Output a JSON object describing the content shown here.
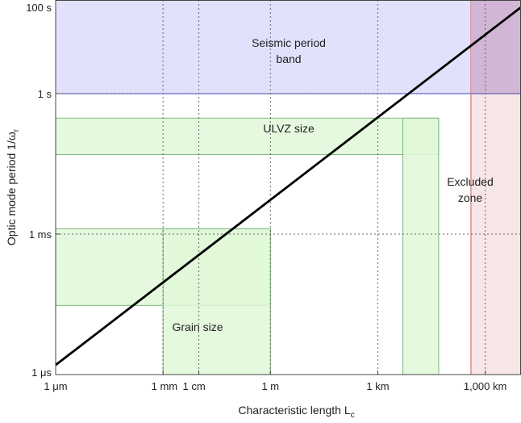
{
  "chart_data": {
    "type": "line",
    "title": "",
    "x_scale": "log",
    "y_scale": "log",
    "xlim": [
      "1e-6 m",
      "1e7 m"
    ],
    "ylim": [
      "1e-6 s",
      "100 s"
    ],
    "xlabel": {
      "main": "Characteristic length L",
      "sub": "c"
    },
    "ylabel": {
      "main": "Optic mode period 1/ω",
      "sub": "r"
    },
    "x_ticks": [
      {
        "value_m": 1e-06,
        "label": "1 μm"
      },
      {
        "value_m": 0.001,
        "label": "1 mm"
      },
      {
        "value_m": 0.01,
        "label": "1 cm"
      },
      {
        "value_m": 1,
        "label": "1 m"
      },
      {
        "value_m": 1000.0,
        "label": "1 km"
      },
      {
        "value_m": 1000000.0,
        "label": "1,000 km"
      }
    ],
    "y_ticks": [
      {
        "value_s": 1e-06,
        "label": "1 μs"
      },
      {
        "value_s": 0.001,
        "label": "1 ms"
      },
      {
        "value_s": 1,
        "label": "1 s"
      },
      {
        "value_s": 100,
        "label": "100 s"
      }
    ],
    "grid": true,
    "series": [
      {
        "x_m": [
          1e-06,
          10000000.0
        ],
        "y_s": [
          1.6e-06,
          70
        ],
        "color": "#000000"
      }
    ],
    "regions": [
      {
        "label_lines": [
          "Seismic period",
          "band"
        ],
        "x_m": [
          1e-06,
          10000000.0
        ],
        "y_s": [
          1,
          100
        ],
        "fill": "#dcdcfb",
        "edge": "#3a3ad6"
      },
      {
        "label_lines": [
          "Excluded",
          "zone"
        ],
        "x_m": [
          400000.0,
          10000000.0
        ],
        "y_s": [
          1e-06,
          100
        ],
        "fill": "#f3dede",
        "edge": "#d65a5a"
      },
      {
        "label_lines": [
          "ULVZ size"
        ],
        "x_m": [
          1e-06,
          50000.0
        ],
        "y_s": [
          0.05,
          0.3
        ],
        "fill": "#e0f8d8",
        "edge": "#7cb87c"
      },
      {
        "label_lines": [],
        "x_m": [
          5000.0,
          50000.0
        ],
        "y_s": [
          1e-06,
          0.3
        ],
        "fill": "#e0f8d8",
        "edge": "#7cb87c"
      },
      {
        "label_lines": [],
        "x_m": [
          1e-06,
          1
        ],
        "y_s": [
          3e-05,
          0.0013
        ],
        "fill": "#e0f8d8",
        "edge": "#7cb87c"
      },
      {
        "label_lines": [
          "Grain size"
        ],
        "x_m": [
          0.001,
          1
        ],
        "y_s": [
          1e-06,
          0.0013
        ],
        "fill": "#e0f8d8",
        "edge": "#7cb87c"
      }
    ]
  }
}
